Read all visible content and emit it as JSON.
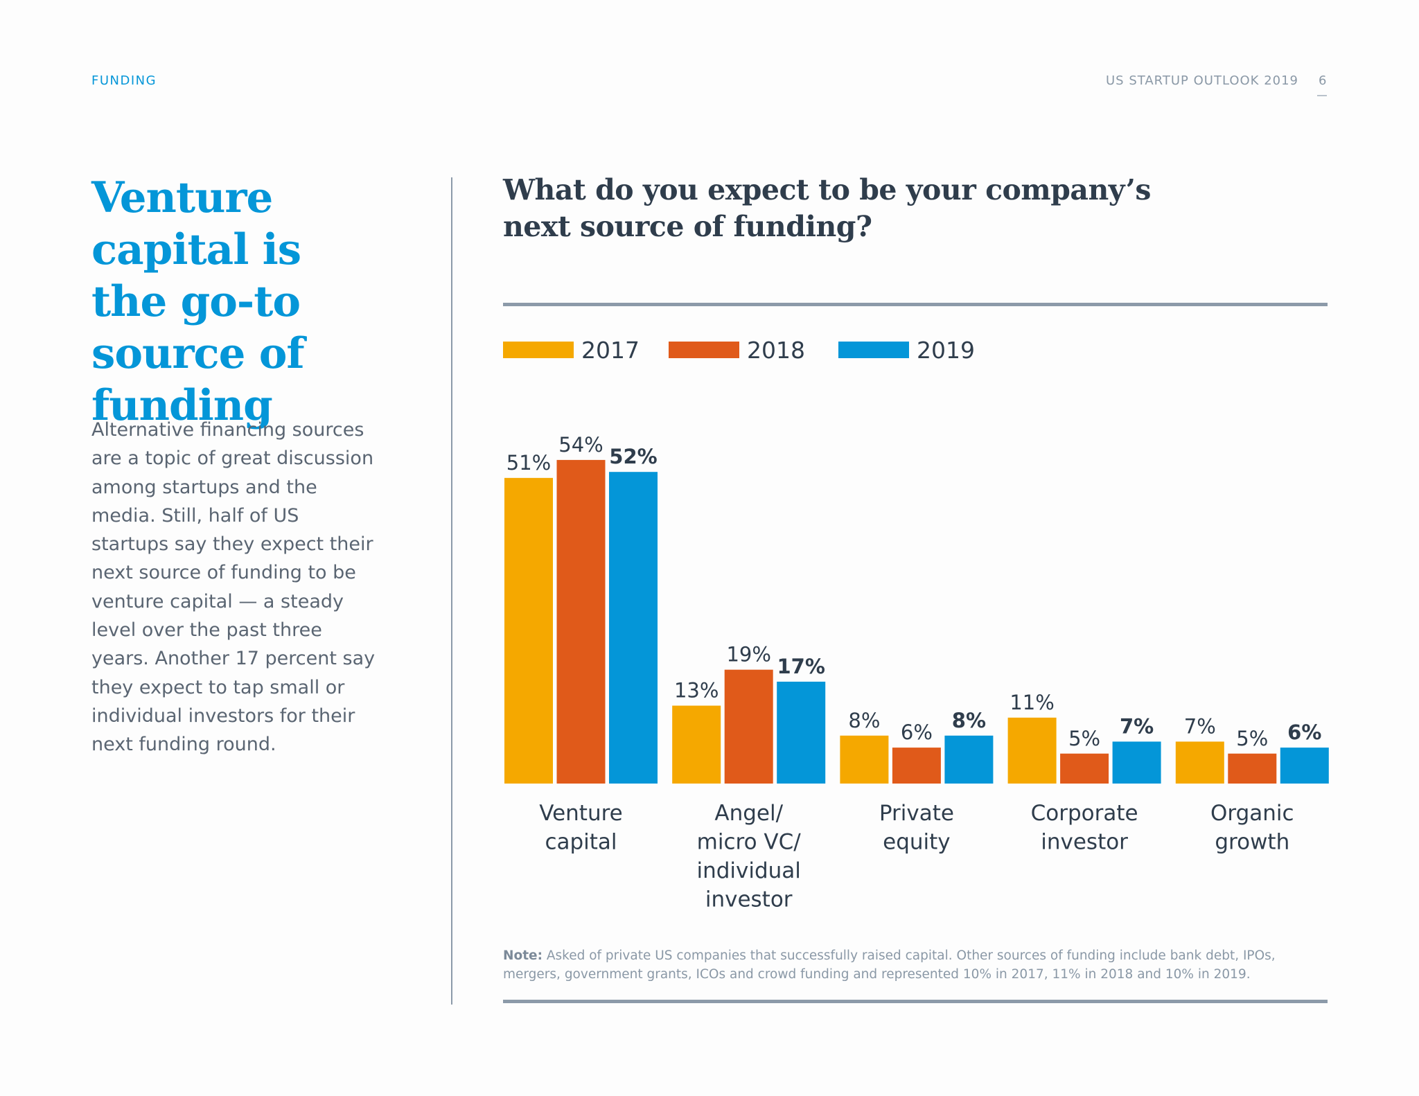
{
  "header": {
    "section": "FUNDING",
    "publication": "US STARTUP OUTLOOK 2019",
    "page_number": "6"
  },
  "headline": "Venture capital is the go-to source of funding",
  "body": "Alternative financing sources are a topic of great discussion among startups and the media. Still, half of US startups say they expect their next source of funding to be venture capital — a steady level over the past three years. Another 17 percent say they expect to tap small or individual investors for their next funding round.",
  "note": {
    "label": "Note:",
    "text": " Asked of private US companies that successfully raised capital. Other sources of funding include bank debt, IPOs, mergers, government grants, ICOs and crowd funding and represented 10% in 2017, 11% in 2018 and 10% in 2019."
  },
  "chart_data": {
    "type": "bar",
    "title": "What do you expect to be your company’s next source of funding?",
    "categories": [
      [
        "Venture",
        "capital"
      ],
      [
        "Angel/",
        "micro VC/",
        "individual",
        "investor"
      ],
      [
        "Private",
        "equity"
      ],
      [
        "Corporate",
        "investor"
      ],
      [
        "Organic",
        "growth"
      ]
    ],
    "series": [
      {
        "name": "2017",
        "color": "#f5a800",
        "values": [
          51,
          13,
          8,
          11,
          7
        ],
        "labels": [
          "51%",
          "13%",
          "8%",
          "11%",
          "7%"
        ],
        "bold": false
      },
      {
        "name": "2018",
        "color": "#e05a1a",
        "values": [
          54,
          19,
          6,
          5,
          5
        ],
        "labels": [
          "54%",
          "19%",
          "6%",
          "5%",
          "5%"
        ],
        "bold": false
      },
      {
        "name": "2019",
        "color": "#0496d8",
        "values": [
          52,
          17,
          8,
          7,
          6
        ],
        "labels": [
          "52%",
          "17%",
          "8%",
          "7%",
          "6%"
        ],
        "bold": true
      }
    ],
    "ylim": [
      0,
      60
    ],
    "legend": "top-left",
    "grid": false,
    "xlabel": "",
    "ylabel": ""
  }
}
